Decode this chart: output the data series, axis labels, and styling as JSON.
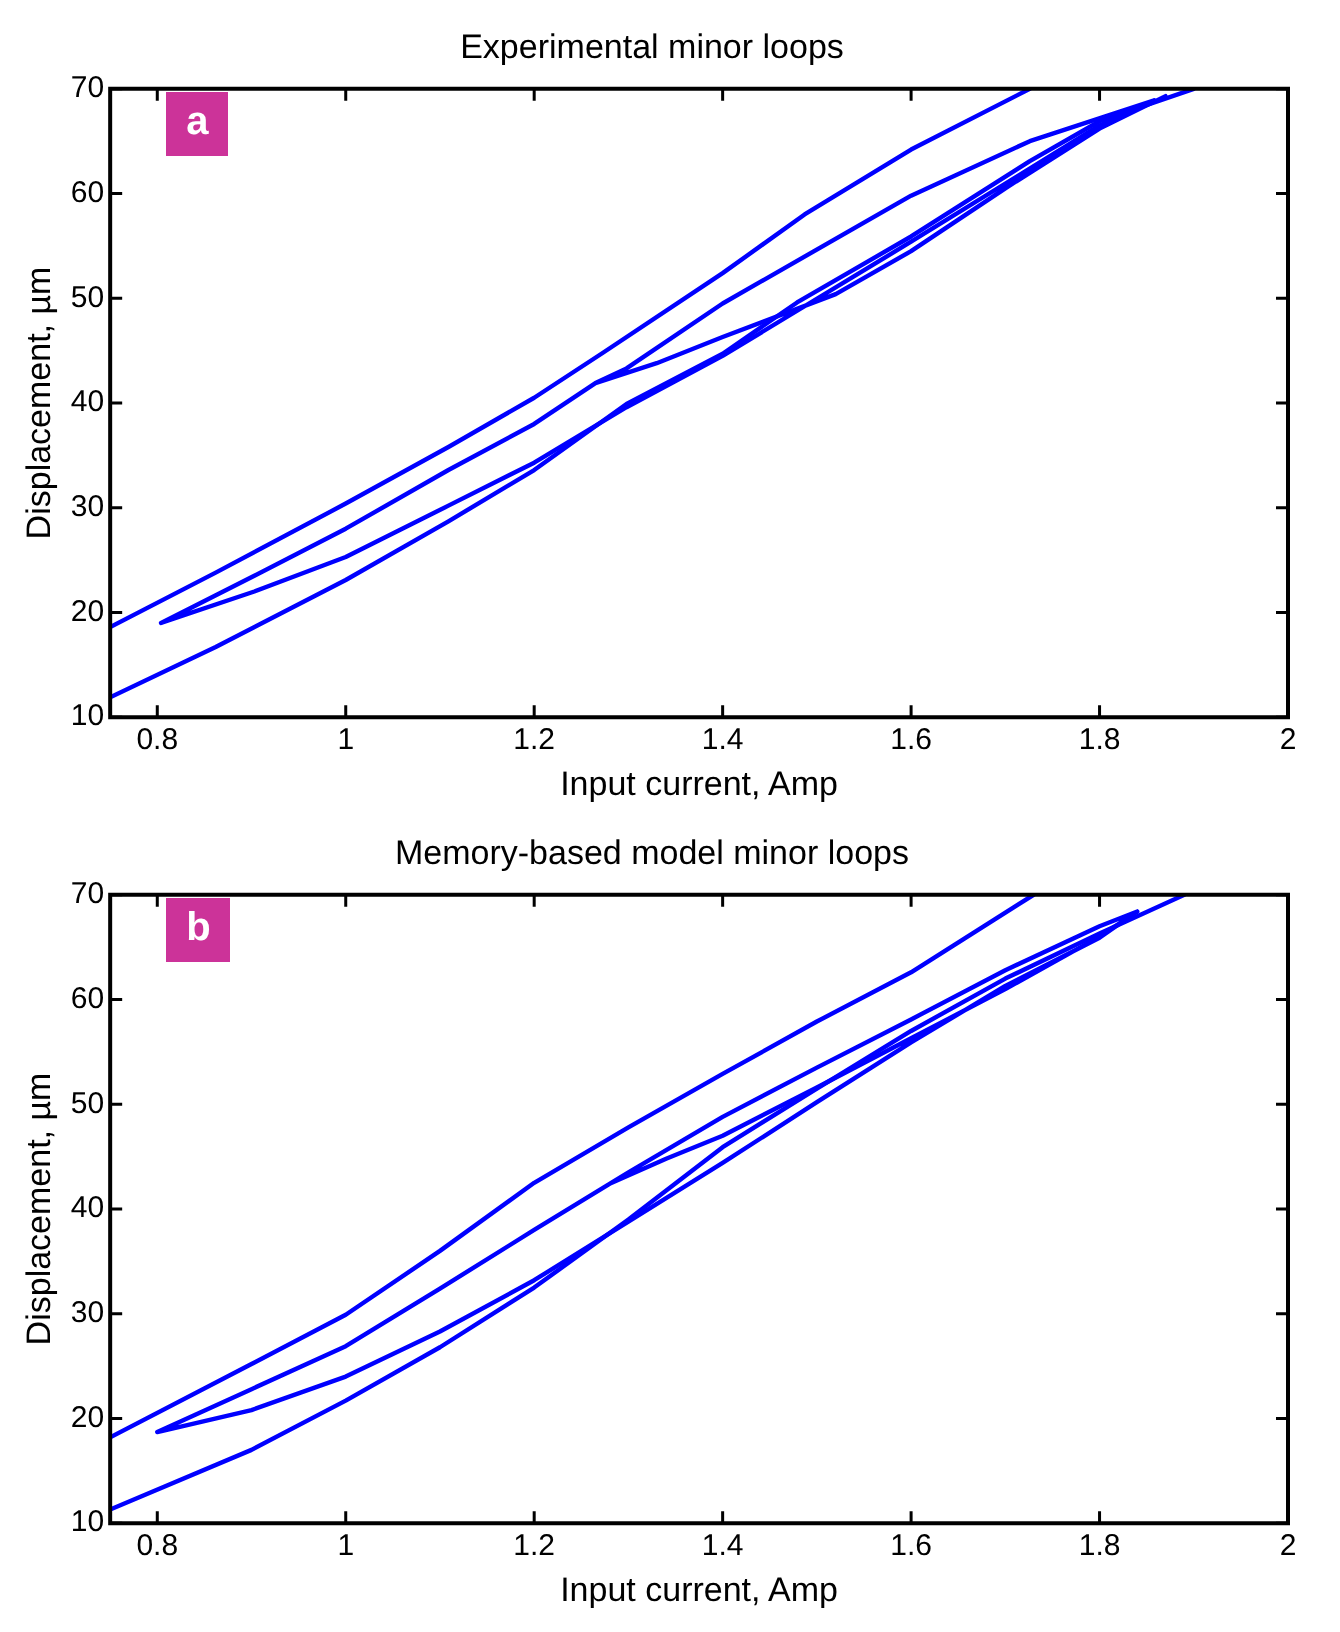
{
  "chart_data": [
    {
      "type": "line",
      "title": "Experimental minor loops",
      "xlabel": "Input current, Amp",
      "ylabel": "Displacement, µm",
      "annotations": [
        "a"
      ],
      "xlim": [
        0.75,
        2
      ],
      "xticks": [
        0.8,
        1,
        1.2,
        1.4,
        1.6,
        1.8,
        2
      ],
      "ylim": [
        10,
        70
      ],
      "yticks": [
        10,
        20,
        30,
        40,
        50,
        60,
        70
      ],
      "grid": false,
      "legend": false,
      "marker": "none",
      "line_style": "solid",
      "series": [
        {
          "color": "#0000ff",
          "x": [
            0.75,
            0.862,
            1.0,
            1.109,
            1.2,
            1.273,
            1.4,
            1.487,
            1.6,
            1.726
          ],
          "values": [
            18.6,
            23.8,
            30.4,
            35.8,
            40.5,
            44.8,
            52.4,
            58,
            64.2,
            70
          ]
        },
        {
          "color": "#0000ff",
          "x": [
            0.75,
            0.862,
            1.0,
            1.109,
            1.2,
            1.298,
            1.4,
            1.479,
            1.6,
            1.726,
            1.8,
            1.9
          ],
          "values": [
            11.9,
            16.7,
            23.1,
            28.7,
            33.6,
            39.9,
            44.7,
            49.6,
            55.9,
            63.1,
            66.9,
            70
          ]
        },
        {
          "color": "#0000ff",
          "x": [
            1.265,
            1.2,
            1.109,
            1.0,
            0.903,
            0.804,
            0.903,
            1.0,
            1.109,
            1.2,
            1.298,
            1.4,
            1.6,
            1.8,
            1.858,
            1.726,
            1.6,
            1.4,
            1.298,
            1.265,
            1.33,
            1.4,
            1.52,
            1.6,
            1.7,
            1.8,
            1.87
          ],
          "values": [
            41.9,
            38.0,
            33.6,
            28.0,
            23.5,
            19.0,
            22.0,
            25.3,
            30.2,
            34.3,
            39.6,
            44.5,
            55.4,
            66.5,
            68.9,
            65.0,
            59.8,
            49.5,
            43.3,
            41.9,
            43.8,
            46.3,
            50.4,
            54.5,
            60.5,
            66.2,
            69.3
          ]
        }
      ]
    },
    {
      "type": "line",
      "title": "Memory-based model minor loops",
      "xlabel": "Input current, Amp",
      "ylabel": "Displacement, µm",
      "annotations": [
        "b"
      ],
      "xlim": [
        0.75,
        2
      ],
      "xticks": [
        0.8,
        1,
        1.2,
        1.4,
        1.6,
        1.8,
        2
      ],
      "ylim": [
        10,
        70
      ],
      "yticks": [
        10,
        20,
        30,
        40,
        50,
        60,
        70
      ],
      "grid": false,
      "legend": false,
      "marker": "none",
      "line_style": "solid",
      "series": [
        {
          "color": "#0000ff",
          "x": [
            0.75,
            0.9,
            1.0,
            1.1,
            1.2,
            1.3,
            1.4,
            1.5,
            1.6,
            1.73
          ],
          "values": [
            18.2,
            25.2,
            29.9,
            36.0,
            42.5,
            47.8,
            52.9,
            57.9,
            62.6,
            70
          ]
        },
        {
          "color": "#0000ff",
          "x": [
            0.75,
            0.9,
            1.0,
            1.1,
            1.2,
            1.3,
            1.4,
            1.5,
            1.6,
            1.7,
            1.8,
            1.89
          ],
          "values": [
            11.3,
            17.0,
            21.7,
            26.8,
            32.5,
            39.0,
            45.9,
            51.5,
            57.0,
            62.0,
            66.3,
            70
          ]
        },
        {
          "color": "#0000ff",
          "x": [
            1.28,
            1.2,
            1.1,
            1.0,
            0.9,
            0.8,
            0.9,
            1.0,
            1.1,
            1.2,
            1.3,
            1.4,
            1.5,
            1.6,
            1.7,
            1.8,
            1.84,
            1.8,
            1.7,
            1.6,
            1.5,
            1.4,
            1.3,
            1.28,
            1.34,
            1.4,
            1.5,
            1.6,
            1.7,
            1.8,
            1.84
          ],
          "values": [
            42.4,
            38.0,
            32.4,
            26.9,
            22.8,
            18.7,
            20.8,
            24.0,
            28.3,
            33.2,
            38.8,
            44.4,
            50.2,
            55.9,
            61.3,
            65.9,
            68.4,
            67,
            62.8,
            58.1,
            53.5,
            48.8,
            43.5,
            42.4,
            44.8,
            47.0,
            51.6,
            56.3,
            61.0,
            66.0,
            68.4
          ]
        }
      ]
    }
  ]
}
